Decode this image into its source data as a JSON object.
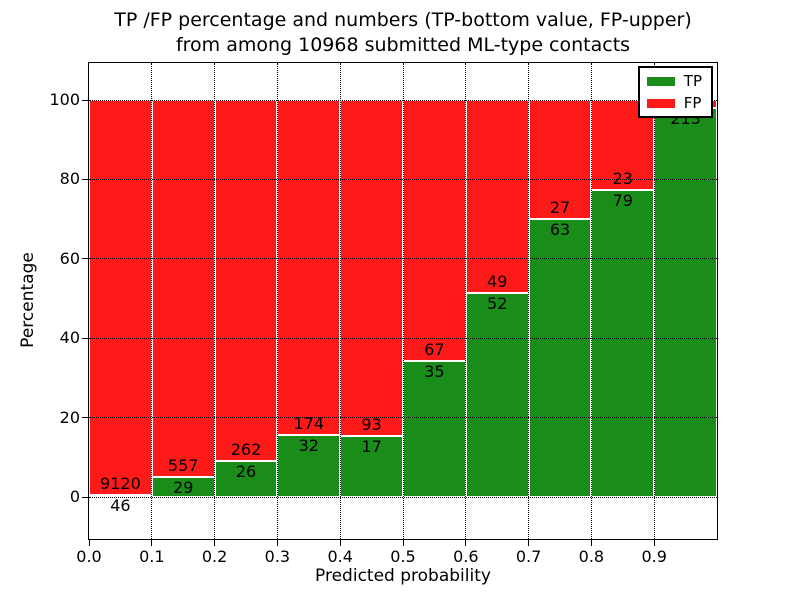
{
  "title": {
    "line1": "TP /FP percentage and numbers (TP-bottom value, FP-upper)",
    "line2": "from among 10968 submitted ML-type contacts"
  },
  "axes": {
    "xlabel": "Predicted probability",
    "ylabel": "Percentage",
    "xtick_labels": [
      "0.0",
      "0.1",
      "0.2",
      "0.3",
      "0.4",
      "0.5",
      "0.6",
      "0.7",
      "0.8",
      "0.9"
    ],
    "ytick_values": [
      0,
      20,
      40,
      60,
      80,
      100
    ],
    "xlim": [
      0.0,
      1.0
    ],
    "ylim": [
      -10.8,
      109.6
    ],
    "grid": "dotted"
  },
  "legend": {
    "position": "upper right",
    "items": [
      {
        "label": "TP",
        "color": "#1a8c1a"
      },
      {
        "label": "FP",
        "color": "#ff1a1a"
      }
    ]
  },
  "colors": {
    "tp": "#1a8c1a",
    "fp": "#ff1a1a",
    "bar_edge": "#ffffff",
    "grid": "#000000"
  },
  "chart_data": {
    "type": "bar",
    "stacked": true,
    "normalized_to_100": true,
    "title": "TP /FP percentage and numbers (TP-bottom value, FP-upper) from among 10968 submitted ML-type contacts",
    "xlabel": "Predicted probability",
    "ylabel": "Percentage",
    "total_contacts": 10968,
    "series_order_note": "TP count shown at bottom of each stack, FP count above it",
    "bins": [
      {
        "range": [
          0.0,
          0.1
        ],
        "tp": 46,
        "tp_label": "46",
        "fp": 9120,
        "fp_label": "9120",
        "tp_pct": 0.5
      },
      {
        "range": [
          0.1,
          0.2
        ],
        "tp": 29,
        "tp_label": "29",
        "fp": 557,
        "fp_label": "557",
        "tp_pct": 4.95
      },
      {
        "range": [
          0.2,
          0.3
        ],
        "tp": 26,
        "tp_label": "26",
        "fp": 262,
        "fp_label": "262",
        "tp_pct": 9.03
      },
      {
        "range": [
          0.3,
          0.4
        ],
        "tp": 32,
        "tp_label": "32",
        "fp": 174,
        "fp_label": "174",
        "tp_pct": 15.53
      },
      {
        "range": [
          0.4,
          0.5
        ],
        "tp": 17,
        "tp_label": "17",
        "fp": 93,
        "fp_label": "93",
        "tp_pct": 15.45
      },
      {
        "range": [
          0.5,
          0.6
        ],
        "tp": 35,
        "tp_label": "35",
        "fp": 67,
        "fp_label": "67",
        "tp_pct": 34.31
      },
      {
        "range": [
          0.6,
          0.7
        ],
        "tp": 52,
        "tp_label": "52",
        "fp": 49,
        "fp_label": "49",
        "tp_pct": 51.49
      },
      {
        "range": [
          0.7,
          0.8
        ],
        "tp": 63,
        "tp_label": "63",
        "fp": 27,
        "fp_label": "27",
        "tp_pct": 70.0
      },
      {
        "range": [
          0.8,
          0.9
        ],
        "tp": 79,
        "tp_label": "79",
        "fp": 23,
        "fp_label": "23",
        "tp_pct": 77.45
      },
      {
        "range": [
          0.9,
          1.0
        ],
        "tp": 213,
        "tp_label": "213",
        "fp": null,
        "fp_label": null,
        "tp_pct": 98.0
      }
    ]
  }
}
